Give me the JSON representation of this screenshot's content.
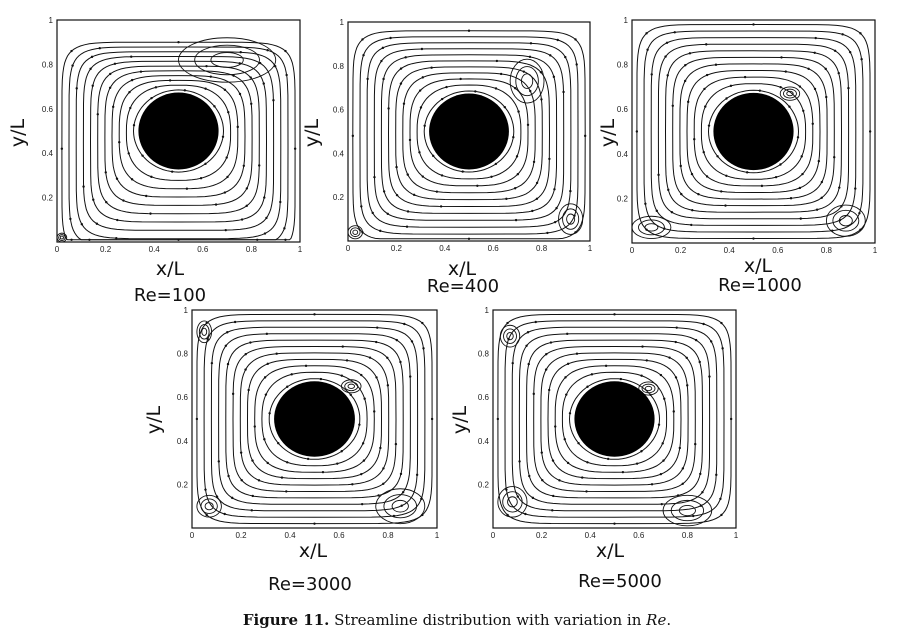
{
  "axis": {
    "xlabel": "x/L",
    "ylabel": "y/L",
    "ticks": [
      "0",
      "0.2",
      "0.4",
      "0.6",
      "0.8",
      "1"
    ]
  },
  "panels": [
    {
      "label": "Re=100",
      "main_center": [
        0.5,
        0.42
      ],
      "secondary_vortices": [
        [
          0.7,
          0.82,
          0.2,
          0.1
        ],
        [
          0.02,
          0.02,
          0.02,
          0.02
        ]
      ]
    },
    {
      "label": "Re=400",
      "main_center": [
        0.5,
        0.48
      ],
      "secondary_vortices": [
        [
          0.74,
          0.73,
          0.07,
          0.1
        ],
        [
          0.03,
          0.04,
          0.03,
          0.03
        ],
        [
          0.92,
          0.1,
          0.05,
          0.07
        ]
      ]
    },
    {
      "label": "Re=1000",
      "main_center": [
        0.5,
        0.5
      ],
      "secondary_vortices": [
        [
          0.65,
          0.67,
          0.04,
          0.03
        ],
        [
          0.08,
          0.07,
          0.08,
          0.05
        ],
        [
          0.88,
          0.1,
          0.08,
          0.07
        ]
      ]
    },
    {
      "label": "Re=3000",
      "main_center": [
        0.5,
        0.5
      ],
      "secondary_vortices": [
        [
          0.65,
          0.65,
          0.04,
          0.03
        ],
        [
          0.07,
          0.1,
          0.05,
          0.05
        ],
        [
          0.85,
          0.1,
          0.1,
          0.08
        ],
        [
          0.05,
          0.9,
          0.03,
          0.05
        ]
      ]
    },
    {
      "label": "Re=5000",
      "main_center": [
        0.5,
        0.5
      ],
      "secondary_vortices": [
        [
          0.64,
          0.64,
          0.04,
          0.03
        ],
        [
          0.08,
          0.12,
          0.06,
          0.07
        ],
        [
          0.8,
          0.08,
          0.1,
          0.07
        ],
        [
          0.07,
          0.88,
          0.04,
          0.05
        ]
      ]
    }
  ],
  "obstacle": {
    "center": [
      0.5,
      0.5
    ],
    "radius": 0.165
  },
  "caption": {
    "label": "Figure 11.",
    "text": " Streamline distribution with variation in ",
    "italic": "Re",
    "end": "."
  }
}
